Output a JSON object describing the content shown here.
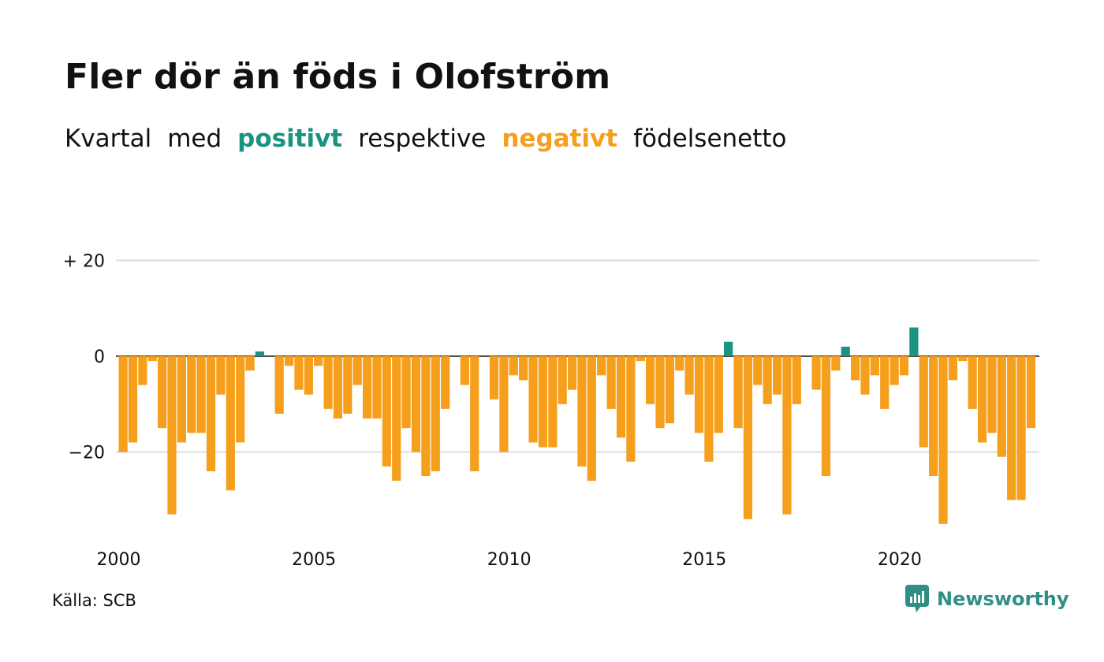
{
  "title": "Fler dör än föds i Olofström",
  "subtitle": {
    "w1": "Kvartal",
    "w2": "med",
    "positive": "positivt",
    "w3": "respektive",
    "negative": "negativt",
    "w4": "födelsenetto"
  },
  "colors": {
    "positive": "#1a9381",
    "negative": "#f59f1c",
    "grid": "#dddddd",
    "brand": "#2f8f85"
  },
  "source": "Källa: SCB",
  "brand": {
    "name": "Newsworthy",
    "icon": "chart-bubble-icon"
  },
  "chart_data": {
    "type": "bar",
    "x_ticks": [
      "2000",
      "2005",
      "2010",
      "2015",
      "2020"
    ],
    "y_ticks": [
      {
        "value": 20,
        "label": "+ 20"
      },
      {
        "value": 0,
        "label": "0"
      },
      {
        "value": -20,
        "label": "−20"
      }
    ],
    "ylim": [
      -40,
      20
    ],
    "grid": true,
    "start": "2000 Q1",
    "frequency": "quarterly",
    "values": [
      -20,
      -18,
      -6,
      -1,
      -15,
      -33,
      -18,
      -16,
      -16,
      -24,
      -8,
      -28,
      -18,
      -3,
      1,
      0,
      -12,
      -2,
      -7,
      -8,
      -2,
      -11,
      -13,
      -12,
      -6,
      -13,
      -13,
      -23,
      -26,
      -15,
      -20,
      -25,
      -24,
      -11,
      0,
      -6,
      -24,
      0,
      -9,
      -20,
      -4,
      -5,
      -18,
      -19,
      -19,
      -10,
      -7,
      -23,
      -26,
      -4,
      -11,
      -17,
      -22,
      -1,
      -10,
      -15,
      -14,
      -3,
      -8,
      -16,
      -22,
      -16,
      3,
      -15,
      -34,
      -6,
      -10,
      -8,
      -33,
      -10,
      0,
      -7,
      -25,
      -3,
      2,
      -5,
      -8,
      -4,
      -11,
      -6,
      -4,
      6,
      -19,
      -25,
      -35,
      -5,
      -1,
      -11,
      -18,
      -16,
      -21,
      -30,
      -30,
      -15
    ]
  }
}
